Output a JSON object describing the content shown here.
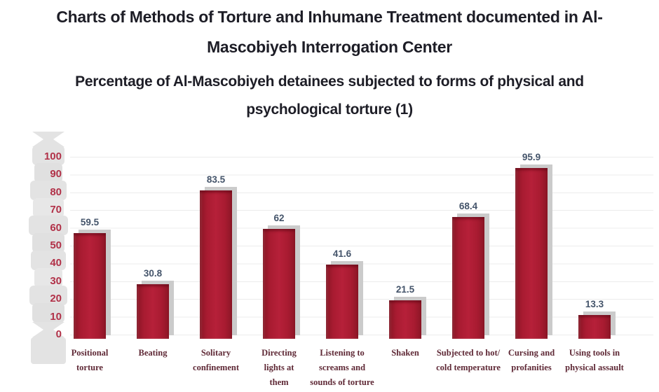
{
  "header": {
    "title": "Charts of Methods of Torture and Inhumane Treatment documented in Al-\nMascobiyeh Interrogation Center",
    "subtitle": "Percentage of Al-Mascobiyeh detainees subjected to forms of physical and\npsychological torture (1)"
  },
  "chart_data": {
    "type": "bar",
    "title": "Percentage of Al-Mascobiyeh detainees subjected to forms of physical and psychological torture (1)",
    "categories": [
      "Positional torture",
      "Beating",
      "Solitary confinement",
      "Directing lights at them",
      "Listening to screams and sounds of torture",
      "Shaken",
      "Subjected to hot/ cold temperature",
      "Cursing and profanities",
      "Using tools in physical assault"
    ],
    "category_display": [
      "Positional\ntorture",
      "Beating",
      "Solitary\nconfinement",
      "Directing\nlights at\nthem",
      "Listening to\nscreams and\nsounds of torture",
      "Shaken",
      "Subjected to hot/\ncold temperature",
      "Cursing and\nprofanities",
      "Using tools in\nphysical assault"
    ],
    "values": [
      59.5,
      30.8,
      83.5,
      62,
      41.6,
      21.5,
      68.4,
      95.9,
      13.3
    ],
    "value_labels": [
      "59.5",
      "30.8",
      "83.5",
      "62",
      "41.6",
      "21.5",
      "68.4",
      "95.9",
      "13.3"
    ],
    "xlabel": "",
    "ylabel": "",
    "ylim": [
      0,
      100
    ],
    "ytick_labels": [
      "100",
      "90",
      "80",
      "70",
      "60",
      "50",
      "40",
      "30",
      "20",
      "10",
      "0"
    ],
    "grid": "horizontal gridlines every 10 units",
    "legend": "none",
    "colors": {
      "bar_fill": "#A81B31",
      "bar_shadow": "#CBCBCB",
      "value_label": "#44546A",
      "category_label": "#5F2936",
      "ytick_label": "#B13148",
      "gridline": "#ECECEC",
      "title_text": "#1D1D26",
      "axis_strip": "#E3E3E3"
    }
  }
}
